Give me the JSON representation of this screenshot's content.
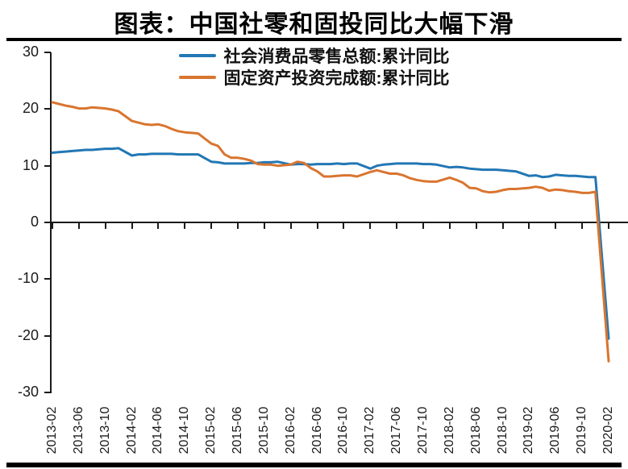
{
  "chart_data": {
    "type": "line",
    "title": "图表：中国社零和固投同比大幅下滑",
    "xlabel": "",
    "ylabel": "",
    "ylim": [
      -30,
      30
    ],
    "y_ticks": [
      30,
      20,
      10,
      0,
      -10,
      -20,
      -30
    ],
    "grid": false,
    "legend_position": "top-center",
    "x_tick_labels": [
      "2013-02",
      "2013-06",
      "2013-10",
      "2014-02",
      "2014-06",
      "2014-10",
      "2015-02",
      "2015-06",
      "2015-10",
      "2016-02",
      "2016-06",
      "2016-10",
      "2017-02",
      "2017-06",
      "2017-10",
      "2018-02",
      "2018-06",
      "2018-10",
      "2019-02",
      "2019-06",
      "2019-10",
      "2020-02"
    ],
    "series": [
      {
        "name": "社会消费品零售总额:累计同比",
        "color": "#2277b4",
        "points": [
          [
            "2013-02",
            12.3
          ],
          [
            "2013-03",
            12.4
          ],
          [
            "2013-04",
            12.5
          ],
          [
            "2013-05",
            12.6
          ],
          [
            "2013-06",
            12.7
          ],
          [
            "2013-07",
            12.8
          ],
          [
            "2013-08",
            12.8
          ],
          [
            "2013-09",
            12.9
          ],
          [
            "2013-10",
            13.0
          ],
          [
            "2013-11",
            13.0
          ],
          [
            "2013-12",
            13.1
          ],
          [
            "2014-02",
            11.8
          ],
          [
            "2014-03",
            12.0
          ],
          [
            "2014-04",
            12.0
          ],
          [
            "2014-05",
            12.1
          ],
          [
            "2014-06",
            12.1
          ],
          [
            "2014-07",
            12.1
          ],
          [
            "2014-08",
            12.1
          ],
          [
            "2014-09",
            12.0
          ],
          [
            "2014-10",
            12.0
          ],
          [
            "2014-11",
            12.0
          ],
          [
            "2014-12",
            12.0
          ],
          [
            "2015-02",
            10.7
          ],
          [
            "2015-03",
            10.6
          ],
          [
            "2015-04",
            10.4
          ],
          [
            "2015-05",
            10.4
          ],
          [
            "2015-06",
            10.4
          ],
          [
            "2015-07",
            10.4
          ],
          [
            "2015-08",
            10.5
          ],
          [
            "2015-09",
            10.5
          ],
          [
            "2015-10",
            10.6
          ],
          [
            "2015-11",
            10.6
          ],
          [
            "2015-12",
            10.7
          ],
          [
            "2016-02",
            10.2
          ],
          [
            "2016-03",
            10.3
          ],
          [
            "2016-04",
            10.3
          ],
          [
            "2016-05",
            10.2
          ],
          [
            "2016-06",
            10.3
          ],
          [
            "2016-07",
            10.3
          ],
          [
            "2016-08",
            10.3
          ],
          [
            "2016-09",
            10.4
          ],
          [
            "2016-10",
            10.3
          ],
          [
            "2016-11",
            10.4
          ],
          [
            "2016-12",
            10.4
          ],
          [
            "2017-02",
            9.5
          ],
          [
            "2017-03",
            10.0
          ],
          [
            "2017-04",
            10.2
          ],
          [
            "2017-05",
            10.3
          ],
          [
            "2017-06",
            10.4
          ],
          [
            "2017-07",
            10.4
          ],
          [
            "2017-08",
            10.4
          ],
          [
            "2017-09",
            10.4
          ],
          [
            "2017-10",
            10.3
          ],
          [
            "2017-11",
            10.3
          ],
          [
            "2017-12",
            10.2
          ],
          [
            "2018-02",
            9.7
          ],
          [
            "2018-03",
            9.8
          ],
          [
            "2018-04",
            9.7
          ],
          [
            "2018-05",
            9.5
          ],
          [
            "2018-06",
            9.4
          ],
          [
            "2018-07",
            9.3
          ],
          [
            "2018-08",
            9.3
          ],
          [
            "2018-09",
            9.3
          ],
          [
            "2018-10",
            9.2
          ],
          [
            "2018-11",
            9.1
          ],
          [
            "2018-12",
            9.0
          ],
          [
            "2019-02",
            8.2
          ],
          [
            "2019-03",
            8.3
          ],
          [
            "2019-04",
            8.0
          ],
          [
            "2019-05",
            8.1
          ],
          [
            "2019-06",
            8.4
          ],
          [
            "2019-07",
            8.3
          ],
          [
            "2019-08",
            8.2
          ],
          [
            "2019-09",
            8.2
          ],
          [
            "2019-10",
            8.1
          ],
          [
            "2019-11",
            8.0
          ],
          [
            "2019-12",
            8.0
          ],
          [
            "2020-02",
            -20.5
          ]
        ]
      },
      {
        "name": "固定资产投资完成额:累计同比",
        "color": "#d9752f",
        "points": [
          [
            "2013-02",
            21.2
          ],
          [
            "2013-03",
            20.9
          ],
          [
            "2013-04",
            20.6
          ],
          [
            "2013-05",
            20.4
          ],
          [
            "2013-06",
            20.1
          ],
          [
            "2013-07",
            20.1
          ],
          [
            "2013-08",
            20.3
          ],
          [
            "2013-09",
            20.2
          ],
          [
            "2013-10",
            20.1
          ],
          [
            "2013-11",
            19.9
          ],
          [
            "2013-12",
            19.6
          ],
          [
            "2014-02",
            17.9
          ],
          [
            "2014-03",
            17.6
          ],
          [
            "2014-04",
            17.3
          ],
          [
            "2014-05",
            17.2
          ],
          [
            "2014-06",
            17.3
          ],
          [
            "2014-07",
            17.0
          ],
          [
            "2014-08",
            16.5
          ],
          [
            "2014-09",
            16.1
          ],
          [
            "2014-10",
            15.9
          ],
          [
            "2014-11",
            15.8
          ],
          [
            "2014-12",
            15.7
          ],
          [
            "2015-02",
            13.9
          ],
          [
            "2015-03",
            13.5
          ],
          [
            "2015-04",
            12.0
          ],
          [
            "2015-05",
            11.4
          ],
          [
            "2015-06",
            11.4
          ],
          [
            "2015-07",
            11.2
          ],
          [
            "2015-08",
            10.9
          ],
          [
            "2015-09",
            10.3
          ],
          [
            "2015-10",
            10.2
          ],
          [
            "2015-11",
            10.2
          ],
          [
            "2015-12",
            10.0
          ],
          [
            "2016-02",
            10.2
          ],
          [
            "2016-03",
            10.7
          ],
          [
            "2016-04",
            10.5
          ],
          [
            "2016-05",
            9.6
          ],
          [
            "2016-06",
            9.0
          ],
          [
            "2016-07",
            8.1
          ],
          [
            "2016-08",
            8.1
          ],
          [
            "2016-09",
            8.2
          ],
          [
            "2016-10",
            8.3
          ],
          [
            "2016-11",
            8.3
          ],
          [
            "2016-12",
            8.1
          ],
          [
            "2017-02",
            8.9
          ],
          [
            "2017-03",
            9.2
          ],
          [
            "2017-04",
            8.9
          ],
          [
            "2017-05",
            8.6
          ],
          [
            "2017-06",
            8.6
          ],
          [
            "2017-07",
            8.3
          ],
          [
            "2017-08",
            7.8
          ],
          [
            "2017-09",
            7.5
          ],
          [
            "2017-10",
            7.3
          ],
          [
            "2017-11",
            7.2
          ],
          [
            "2017-12",
            7.2
          ],
          [
            "2018-02",
            7.9
          ],
          [
            "2018-03",
            7.5
          ],
          [
            "2018-04",
            7.0
          ],
          [
            "2018-05",
            6.1
          ],
          [
            "2018-06",
            6.0
          ],
          [
            "2018-07",
            5.5
          ],
          [
            "2018-08",
            5.3
          ],
          [
            "2018-09",
            5.4
          ],
          [
            "2018-10",
            5.7
          ],
          [
            "2018-11",
            5.9
          ],
          [
            "2018-12",
            5.9
          ],
          [
            "2019-02",
            6.1
          ],
          [
            "2019-03",
            6.3
          ],
          [
            "2019-04",
            6.1
          ],
          [
            "2019-05",
            5.6
          ],
          [
            "2019-06",
            5.8
          ],
          [
            "2019-07",
            5.7
          ],
          [
            "2019-08",
            5.5
          ],
          [
            "2019-09",
            5.4
          ],
          [
            "2019-10",
            5.2
          ],
          [
            "2019-11",
            5.2
          ],
          [
            "2019-12",
            5.4
          ],
          [
            "2020-02",
            -24.5
          ]
        ]
      }
    ]
  }
}
